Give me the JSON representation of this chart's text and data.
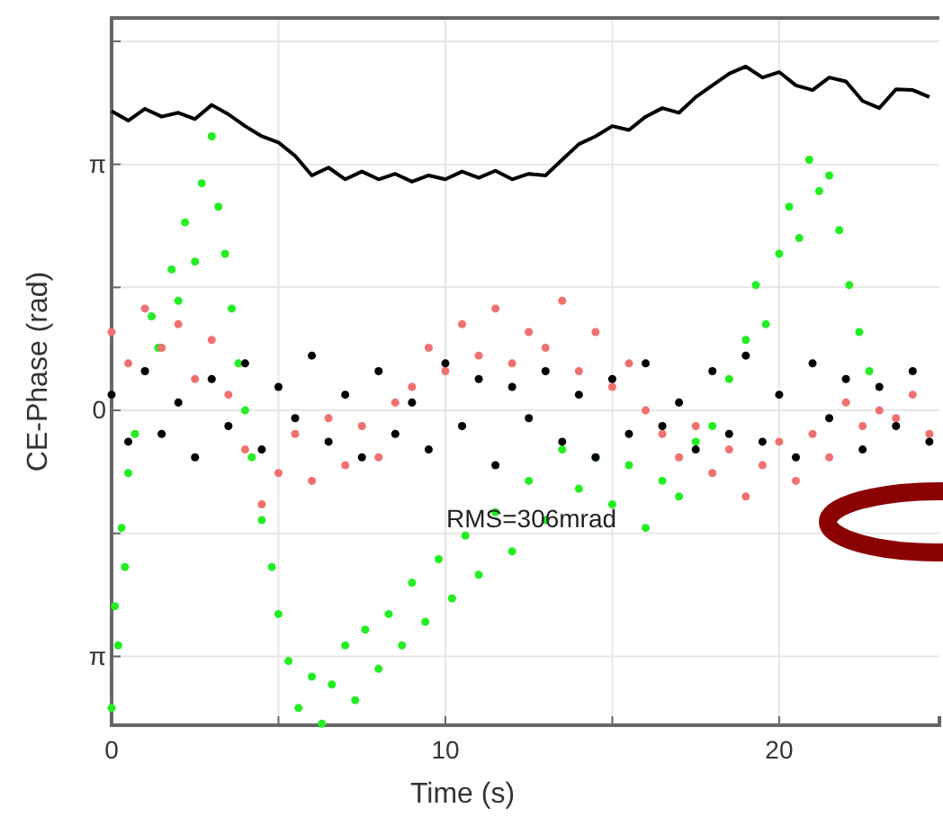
{
  "chart_data": {
    "type": "scatter",
    "xlabel": "Time (s)",
    "ylabel": "CE-Phase (rad)",
    "xlim": [
      0,
      24.8
    ],
    "ylim": [
      -4.02,
      5.01
    ],
    "xticks": [
      0,
      {
        "value": 5,
        "label": null
      },
      10,
      {
        "value": 15,
        "label": null
      },
      20
    ],
    "yticks": [
      {
        "value": -3.1416,
        "label": "π"
      },
      {
        "value": -1.5708,
        "label": null
      },
      {
        "value": 0,
        "label": "0"
      },
      {
        "value": 1.5708,
        "label": null
      },
      {
        "value": 3.1416,
        "label": "π"
      },
      {
        "value": 4.7124,
        "label": null
      }
    ],
    "grid": true,
    "marker": "circle",
    "annotations": [
      "RMS=306mrad"
    ],
    "series": [
      {
        "type": "line",
        "marker": "none",
        "color": "#000000",
        "x": [
          0,
          0.5,
          1,
          1.5,
          2,
          2.5,
          3,
          3.5,
          4,
          4.5,
          5,
          5.5,
          6,
          6.5,
          7,
          7.5,
          8,
          8.5,
          9,
          9.5,
          10,
          10.5,
          11,
          11.5,
          12,
          12.5,
          13,
          13.5,
          14,
          14.5,
          15,
          15.5,
          16,
          16.5,
          17,
          17.5,
          18,
          18.5,
          19,
          19.5,
          20,
          20.5,
          21,
          21.5,
          22,
          22.5,
          23,
          23.5,
          24,
          24.5
        ],
        "values": [
          3.82,
          3.7,
          3.85,
          3.75,
          3.8,
          3.72,
          3.9,
          3.78,
          3.63,
          3.5,
          3.42,
          3.25,
          3.0,
          3.1,
          2.95,
          3.05,
          2.95,
          3.02,
          2.92,
          3.0,
          2.95,
          3.05,
          2.97,
          3.06,
          2.95,
          3.02,
          3.0,
          3.2,
          3.4,
          3.5,
          3.63,
          3.58,
          3.75,
          3.86,
          3.8,
          4.0,
          4.15,
          4.3,
          4.39,
          4.25,
          4.32,
          4.15,
          4.09,
          4.25,
          4.2,
          3.95,
          3.86,
          4.1,
          4.09,
          4.0
        ]
      },
      {
        "color": "#22ee22",
        "x": [
          0,
          0.1,
          0.2,
          0.3,
          0.4,
          0.5,
          0.7,
          1,
          1.2,
          1.4,
          1.8,
          2,
          2.2,
          2.5,
          2.7,
          3,
          3.2,
          3.4,
          3.6,
          3.8,
          4,
          4.2,
          4.5,
          4.8,
          5,
          5.3,
          5.6,
          6,
          6.3,
          6.6,
          7,
          7.3,
          7.6,
          8,
          8.3,
          8.7,
          9,
          9.4,
          9.8,
          10.2,
          10.6,
          11,
          11.5,
          12,
          12.5,
          13,
          13.5,
          14,
          14.5,
          15,
          15.5,
          16,
          16.5,
          17,
          17.5,
          18,
          18.5,
          19,
          19.3,
          19.6,
          20,
          20.3,
          20.6,
          20.9,
          21.2,
          21.5,
          21.8,
          22.1,
          22.4,
          22.7
        ],
        "values": [
          -3.8,
          -2.5,
          -3.0,
          -1.5,
          -2.0,
          -0.8,
          -0.3,
          0.5,
          1.2,
          0.8,
          1.8,
          1.4,
          2.4,
          1.9,
          2.9,
          3.5,
          2.6,
          2.0,
          1.3,
          0.6,
          0.0,
          -0.6,
          -1.4,
          -2.0,
          -2.6,
          -3.2,
          -3.8,
          -3.4,
          -4.0,
          -3.5,
          -3.0,
          -3.7,
          -2.8,
          -3.3,
          -2.6,
          -3.0,
          -2.2,
          -2.7,
          -1.9,
          -2.4,
          -1.6,
          -2.1,
          -1.3,
          -1.8,
          -0.9,
          -1.4,
          -0.5,
          -1.0,
          -0.6,
          -1.2,
          -0.7,
          -1.5,
          -0.9,
          -1.1,
          -0.4,
          -0.2,
          0.4,
          0.9,
          1.6,
          1.1,
          2.0,
          2.6,
          2.2,
          3.2,
          2.8,
          3.0,
          2.3,
          1.6,
          1.0,
          0.5
        ]
      },
      {
        "color": "#f07070",
        "x": [
          0,
          0.5,
          1,
          1.5,
          2,
          2.5,
          3,
          3.5,
          4,
          4.5,
          5,
          5.5,
          6,
          6.5,
          7,
          7.5,
          8,
          8.5,
          9,
          9.5,
          10,
          10.5,
          11,
          11.5,
          12,
          12.5,
          13,
          13.5,
          14,
          14.5,
          15,
          15.5,
          16,
          16.5,
          17,
          17.5,
          18,
          18.5,
          19,
          19.5,
          20,
          20.5,
          21,
          21.5,
          22,
          22.5,
          23,
          23.5,
          24,
          24.5
        ],
        "values": [
          1.0,
          0.6,
          1.3,
          0.8,
          1.1,
          0.4,
          0.9,
          0.2,
          -0.5,
          -1.2,
          -0.8,
          -0.3,
          -0.9,
          -0.1,
          -0.7,
          -0.2,
          -0.6,
          0.1,
          0.3,
          0.8,
          0.5,
          1.1,
          0.7,
          1.3,
          0.6,
          1.0,
          0.8,
          1.4,
          0.5,
          1.0,
          0.3,
          0.6,
          0.0,
          -0.3,
          -0.6,
          -0.2,
          -0.8,
          -0.5,
          -1.1,
          -0.7,
          -0.4,
          -0.9,
          -0.3,
          -0.6,
          0.1,
          -0.2,
          0.0,
          -0.1,
          0.2,
          -0.3
        ]
      },
      {
        "color": "#000000",
        "x": [
          0,
          0.5,
          1,
          1.5,
          2,
          2.5,
          3,
          3.5,
          4,
          4.5,
          5,
          5.5,
          6,
          6.5,
          7,
          7.5,
          8,
          8.5,
          9,
          9.5,
          10,
          10.5,
          11,
          11.5,
          12,
          12.5,
          13,
          13.5,
          14,
          14.5,
          15,
          15.5,
          16,
          16.5,
          17,
          17.5,
          18,
          18.5,
          19,
          19.5,
          20,
          20.5,
          21,
          21.5,
          22,
          22.5,
          23,
          23.5,
          24,
          24.5
        ],
        "values": [
          0.2,
          -0.4,
          0.5,
          -0.3,
          0.1,
          -0.6,
          0.4,
          -0.2,
          0.6,
          -0.5,
          0.3,
          -0.1,
          0.7,
          -0.4,
          0.2,
          -0.6,
          0.5,
          -0.3,
          0.1,
          -0.5,
          0.6,
          -0.2,
          0.4,
          -0.7,
          0.3,
          -0.1,
          0.5,
          -0.4,
          0.2,
          -0.6,
          0.4,
          -0.3,
          0.6,
          -0.2,
          0.1,
          -0.5,
          0.5,
          -0.3,
          0.7,
          -0.4,
          0.2,
          -0.6,
          0.6,
          -0.1,
          0.4,
          -0.5,
          0.3,
          -0.2,
          0.5,
          -0.4
        ]
      }
    ]
  }
}
